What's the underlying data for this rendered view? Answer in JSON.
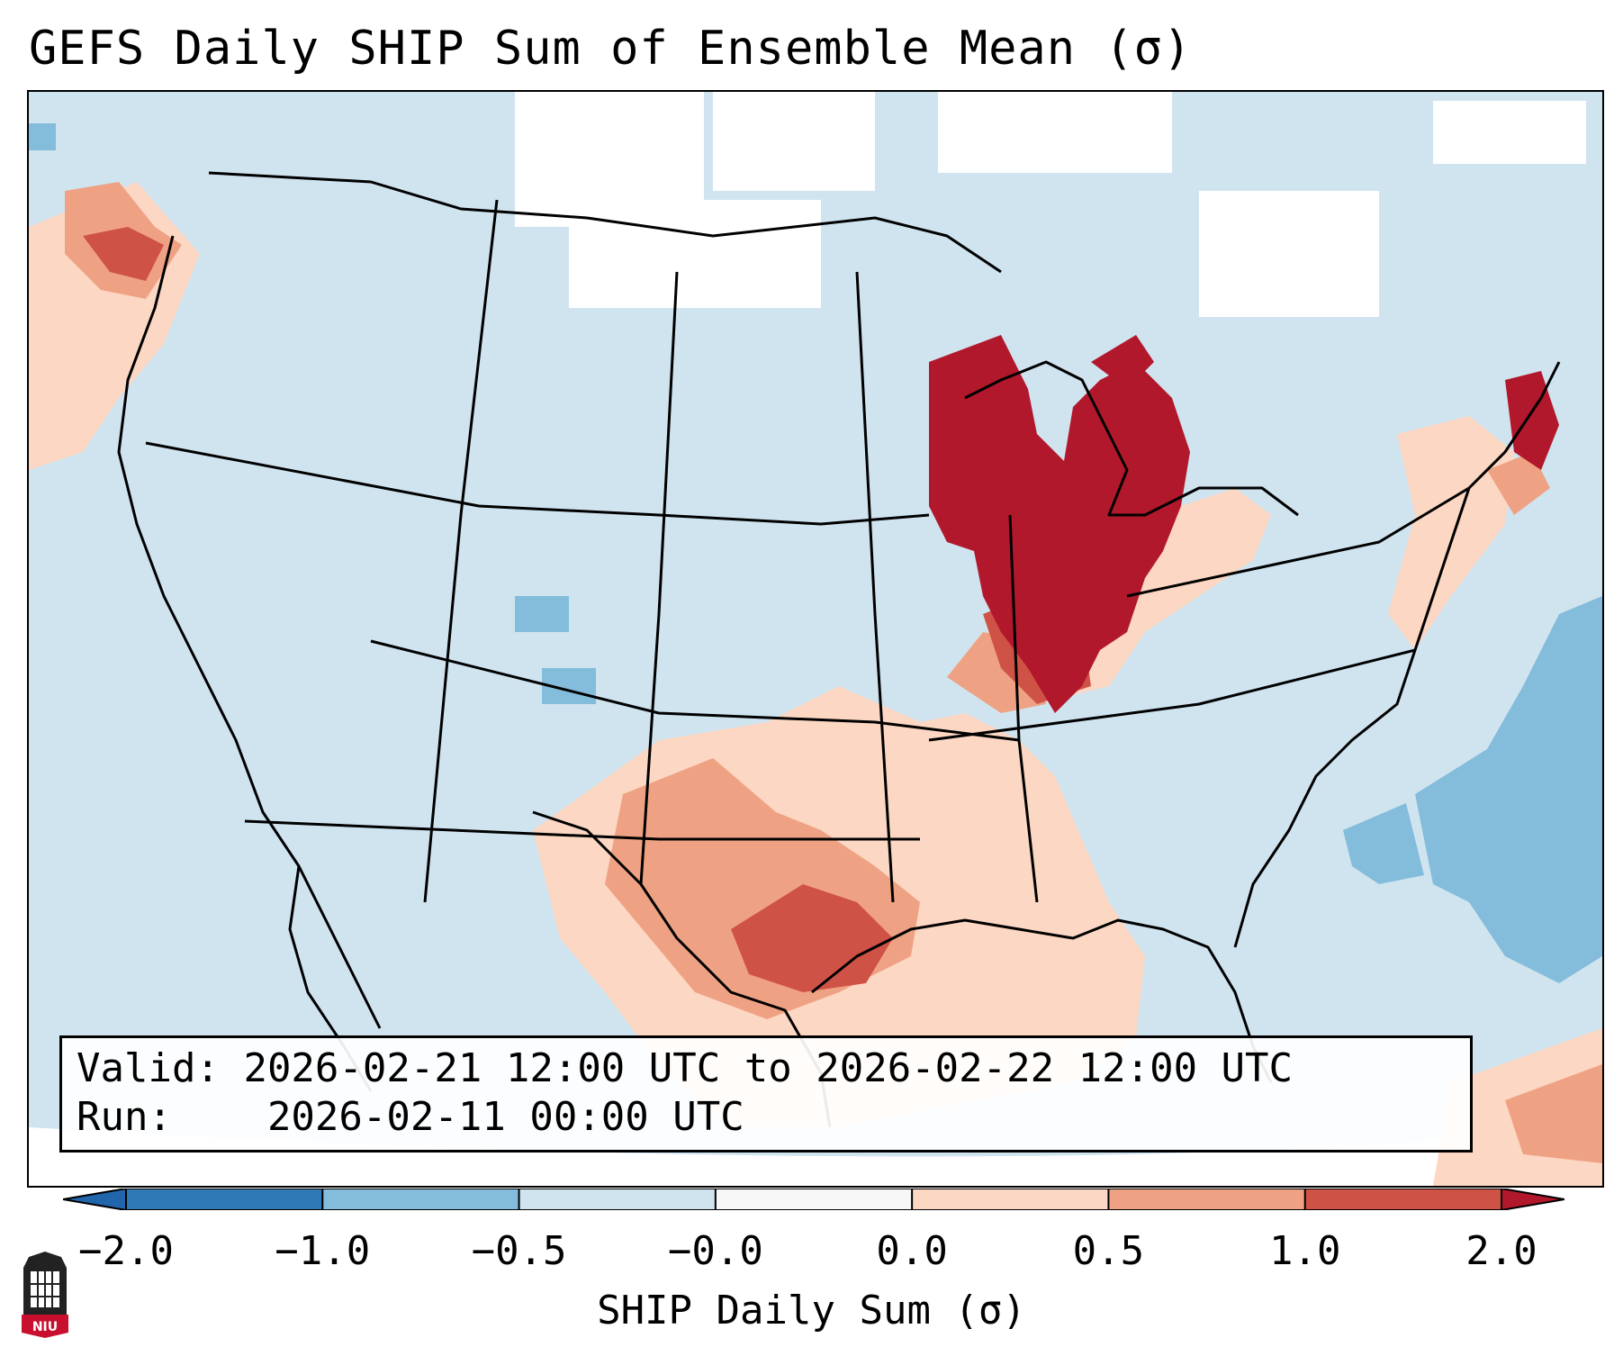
{
  "title": "GEFS Daily SHIP Sum of Ensemble Mean (σ)",
  "legend_box": {
    "valid_label": "Valid:",
    "valid_value": "2026-02-21 12:00 UTC to 2026-02-22 12:00 UTC",
    "run_label": "Run:",
    "run_value": "2026-02-11 00:00 UTC"
  },
  "colorbar": {
    "label": "SHIP Daily Sum (σ)",
    "ticks": [
      "−2.0",
      "−1.0",
      "−0.5",
      "−0.0",
      "0.0",
      "0.5",
      "1.0",
      "2.0"
    ],
    "colors": [
      "#2f79b5",
      "#84bcdb",
      "#d0e4f0",
      "#f7f7f7",
      "#fcd7c3",
      "#efa283",
      "#cf5246",
      "#b2182b"
    ],
    "extend_low_color": "#2166ac",
    "extend_high_color": "#b2182b"
  },
  "map": {
    "region": "Continental United States",
    "variable": "SHIP daily sum anomaly",
    "highlights": [
      {
        "area": "Iowa, Illinois, Wisconsin, Michigan, Indiana",
        "category": "> 1.0"
      },
      {
        "area": "Texas, Oklahoma, Gulf Coast",
        "category": "0.0 to 1.0"
      },
      {
        "area": "Western Atlantic",
        "category": "-1.0 to -0.5"
      },
      {
        "area": "Pacific Northwest",
        "category": "0.5 to 1.0"
      }
    ]
  },
  "logo": {
    "text": "NIU"
  }
}
